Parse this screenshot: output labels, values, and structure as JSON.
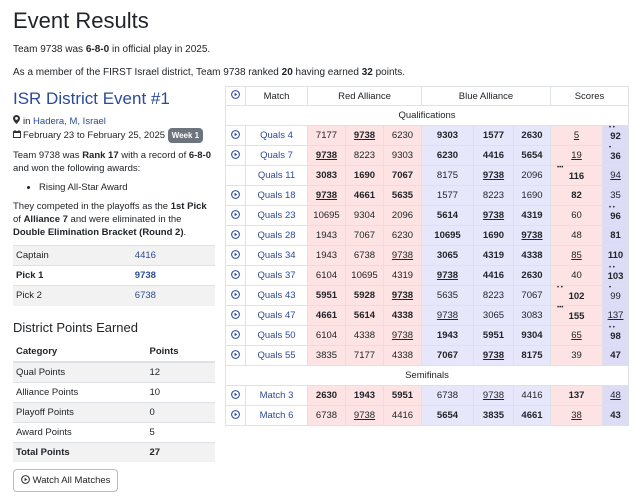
{
  "page": {
    "title": "Event Results",
    "line1_pre": "Team 9738 was ",
    "line1_record": "6-8-0",
    "line1_post": " in official play in 2025.",
    "line2_pre": "As a member of the FIRST Israel district, Team 9738 ranked ",
    "line2_rank": "20",
    "line2_mid": " having earned ",
    "line2_points": "32",
    "line2_post": " points."
  },
  "event": {
    "name": "ISR District Event #1",
    "location_prefix": "in ",
    "location": "Hadera, M, Israel",
    "dates": "February 23 to February 25, 2025",
    "week_badge": "Week 1",
    "summary_pre": "Team 9738 was ",
    "summary_rank": "Rank 17",
    "summary_mid": " with a record of ",
    "summary_record": "6-8-0",
    "summary_post": " and won the following awards:",
    "awards": [
      "Rising All-Star Award"
    ],
    "playoff_pre": "They competed in the playoffs as the ",
    "playoff_pick": "1st Pick",
    "playoff_of": " of ",
    "playoff_alliance": "Alliance 7",
    "playoff_mid": " and were eliminated in the ",
    "playoff_bracket": "Double Elimination Bracket (Round 2)",
    "playoff_end": "."
  },
  "alliance_rows": [
    {
      "label": "Captain",
      "team": "4416"
    },
    {
      "label": "Pick 1",
      "team": "9738"
    },
    {
      "label": "Pick 2",
      "team": "6738"
    }
  ],
  "district_points": {
    "heading": "District Points Earned",
    "col_category": "Category",
    "col_points": "Points",
    "rows": [
      {
        "category": "Qual Points",
        "points": "12"
      },
      {
        "category": "Alliance Points",
        "points": "10"
      },
      {
        "category": "Playoff Points",
        "points": "0"
      },
      {
        "category": "Award Points",
        "points": "5"
      },
      {
        "category": "Total Points",
        "points": "27"
      }
    ]
  },
  "watch_button": "Watch All Matches",
  "results": {
    "headers": {
      "match": "Match",
      "red": "Red Alliance",
      "blue": "Blue Alliance",
      "scores": "Scores"
    },
    "sections": [
      {
        "name": "Qualifications",
        "matches": [
          {
            "match": "Quals 4",
            "red": [
              "7177",
              "9738",
              "6230"
            ],
            "blue": [
              "9303",
              "1577",
              "2630"
            ],
            "red_score": "5",
            "blue_score": "92"
          },
          {
            "match": "Quals 7",
            "red": [
              "9738",
              "8223",
              "9303"
            ],
            "blue": [
              "6230",
              "4416",
              "5654"
            ],
            "red_score": "19",
            "blue_score": "36"
          },
          {
            "match": "Quals 11",
            "red": [
              "3083",
              "1690",
              "7067"
            ],
            "blue": [
              "8175",
              "9738",
              "2096"
            ],
            "red_score": "116",
            "blue_score": "94"
          },
          {
            "match": "Quals 18",
            "red": [
              "9738",
              "4661",
              "5635"
            ],
            "blue": [
              "1577",
              "8223",
              "1690"
            ],
            "red_score": "82",
            "blue_score": "35"
          },
          {
            "match": "Quals 23",
            "red": [
              "10695",
              "9304",
              "2096"
            ],
            "blue": [
              "5614",
              "9738",
              "4319"
            ],
            "red_score": "60",
            "blue_score": "96"
          },
          {
            "match": "Quals 28",
            "red": [
              "1943",
              "7067",
              "6230"
            ],
            "blue": [
              "10695",
              "1690",
              "9738"
            ],
            "red_score": "48",
            "blue_score": "81"
          },
          {
            "match": "Quals 34",
            "red": [
              "1943",
              "6738",
              "9738"
            ],
            "blue": [
              "3065",
              "4319",
              "4338"
            ],
            "red_score": "85",
            "blue_score": "110"
          },
          {
            "match": "Quals 37",
            "red": [
              "6104",
              "10695",
              "4319"
            ],
            "blue": [
              "9738",
              "4416",
              "2630"
            ],
            "red_score": "40",
            "blue_score": "103"
          },
          {
            "match": "Quals 43",
            "red": [
              "5951",
              "5928",
              "9738"
            ],
            "blue": [
              "5635",
              "8223",
              "7067"
            ],
            "red_score": "102",
            "blue_score": "99"
          },
          {
            "match": "Quals 47",
            "red": [
              "4661",
              "5614",
              "4338"
            ],
            "blue": [
              "9738",
              "3065",
              "3083"
            ],
            "red_score": "155",
            "blue_score": "137"
          },
          {
            "match": "Quals 50",
            "red": [
              "6104",
              "4338",
              "9738"
            ],
            "blue": [
              "1943",
              "5951",
              "9304"
            ],
            "red_score": "65",
            "blue_score": "98"
          },
          {
            "match": "Quals 55",
            "red": [
              "3835",
              "7177",
              "4338"
            ],
            "blue": [
              "7067",
              "9738",
              "8175"
            ],
            "red_score": "39",
            "blue_score": "47"
          }
        ]
      },
      {
        "name": "Semifinals",
        "matches": [
          {
            "match": "Match 3",
            "red": [
              "2630",
              "1943",
              "5951"
            ],
            "blue": [
              "6738",
              "9738",
              "4416"
            ],
            "red_score": "137",
            "blue_score": "48"
          },
          {
            "match": "Match 6",
            "red": [
              "6738",
              "9738",
              "4416"
            ],
            "blue": [
              "5654",
              "3835",
              "4661"
            ],
            "red_score": "38",
            "blue_score": "43"
          }
        ]
      }
    ]
  }
}
